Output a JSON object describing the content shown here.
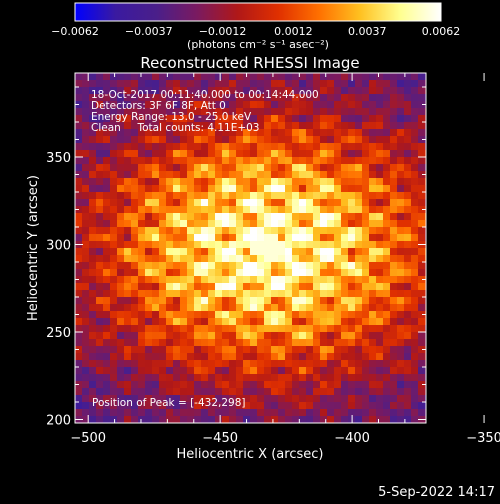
{
  "chart_data": {
    "type": "heatmap",
    "title": "Reconstructed RHESSI Image",
    "xlabel": "Heliocentric X (arcsec)",
    "ylabel": "Heliocentric Y (arcsec)",
    "xlim": [
      -505,
      -372
    ],
    "ylim": [
      198,
      398
    ],
    "x_ticks": [
      "−500",
      "−450",
      "−400",
      "−350"
    ],
    "x_tick_values": [
      -500,
      -450,
      -400,
      -350
    ],
    "y_ticks": [
      "200",
      "250",
      "300",
      "350"
    ],
    "y_tick_values": [
      200,
      250,
      300,
      350
    ],
    "colorbar": {
      "min": -0.0062,
      "max": 0.0062,
      "ticks": [
        "−0.0062",
        "−0.0037",
        "−0.0012",
        "0.0012",
        "0.0037",
        "0.0062"
      ],
      "tick_values": [
        -0.0062,
        -0.0037,
        -0.0012,
        0.0012,
        0.0037,
        0.0062
      ],
      "unit_label": "(photons cm⁻² s⁻¹ asec⁻²)",
      "colors": [
        "#0000ff",
        "#3a1aa0",
        "#4a1f8a",
        "#7a1a60",
        "#b01818",
        "#e03000",
        "#ff7000",
        "#ffc020",
        "#ffff90",
        "#ffffff"
      ]
    },
    "peak": [
      -432,
      298
    ],
    "annotations": {
      "time": "18-Oct-2017 00:11:40.000 to 00:14:44.000",
      "detectors": "Detectors: 3F 6F 8F, Att 0",
      "energy": "Energy Range: 13.0 - 25.0 keV",
      "method": "Clean     Total counts: 4.11E+03",
      "peak_label": "Position of Peak = [-432,298]"
    }
  },
  "footer": {
    "timestamp": "5-Sep-2022 14:17"
  }
}
